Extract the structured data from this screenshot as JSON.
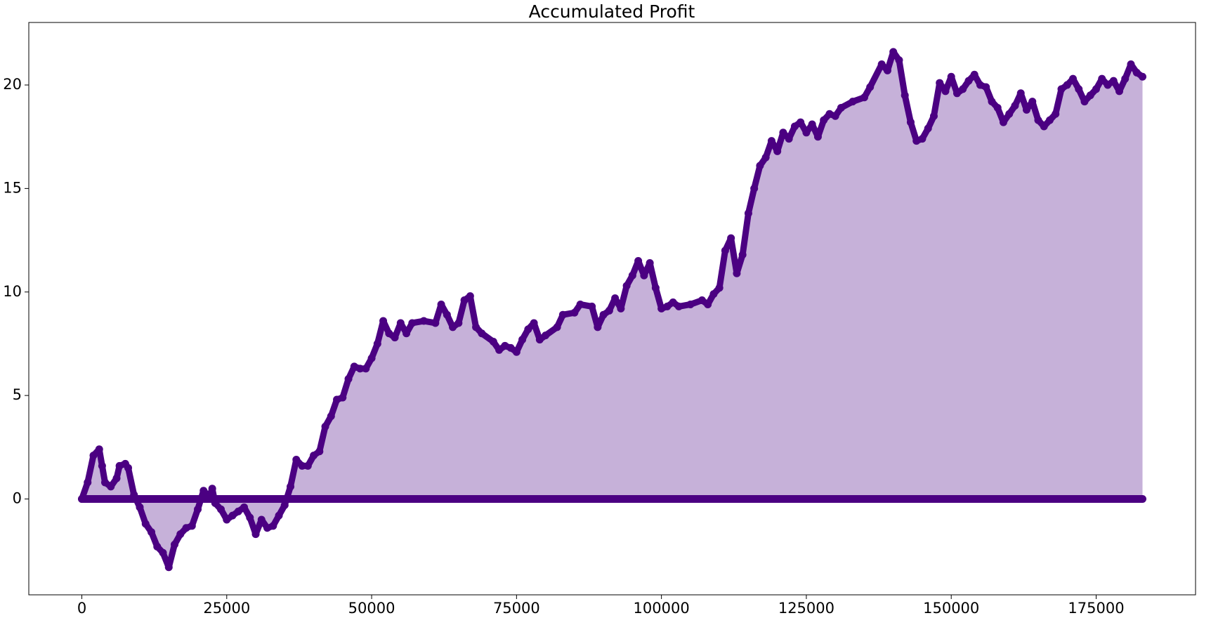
{
  "chart_data": {
    "type": "scatter",
    "title": "Accumulated Profit",
    "xlim": [
      -9150,
      192150
    ],
    "xticks": [
      0,
      25000,
      50000,
      75000,
      100000,
      125000,
      150000,
      175000
    ],
    "ylim": [
      -4.63,
      23.02
    ],
    "yticks": [
      0,
      5,
      10,
      15,
      20
    ],
    "series": [
      {
        "color": "#4b0082",
        "fill": "#c6b1d9",
        "x": [
          0,
          1000,
          2000,
          3000,
          3500,
          4000,
          5000,
          6000,
          6500,
          7500,
          8000,
          9000,
          10000,
          11000,
          12000,
          13000,
          14000,
          15000,
          16000,
          17000,
          18000,
          19000,
          20000,
          21000,
          22000,
          22500,
          23000,
          24000,
          25000,
          26000,
          27000,
          28000,
          29000,
          30000,
          31000,
          32000,
          33000,
          34000,
          35000,
          36000,
          37000,
          38000,
          39000,
          40000,
          41000,
          42000,
          43000,
          44000,
          45000,
          46000,
          47000,
          48000,
          49000,
          50000,
          51000,
          52000,
          53000,
          54000,
          55000,
          56000,
          57000,
          59000,
          61000,
          62000,
          63000,
          64000,
          65000,
          66000,
          67000,
          68000,
          69000,
          71000,
          72000,
          73000,
          74000,
          75000,
          76000,
          77000,
          78000,
          79000,
          80000,
          82000,
          83000,
          85000,
          86000,
          88000,
          89000,
          90000,
          91000,
          92000,
          93000,
          94000,
          95000,
          96000,
          97000,
          98000,
          99000,
          100000,
          101000,
          102000,
          103000,
          105000,
          107000,
          108000,
          109000,
          110000,
          111000,
          112000,
          113000,
          114000,
          115000,
          116000,
          117000,
          118000,
          119000,
          120000,
          121000,
          122000,
          123000,
          124000,
          125000,
          126000,
          127000,
          128000,
          129000,
          130000,
          131000,
          133000,
          135000,
          136000,
          138000,
          139000,
          140000,
          141000,
          142000,
          143000,
          144000,
          145000,
          146000,
          147000,
          148000,
          149000,
          150000,
          151000,
          152000,
          153000,
          154000,
          155000,
          156000,
          157000,
          158000,
          159000,
          160000,
          161000,
          162000,
          163000,
          164000,
          165000,
          166000,
          167000,
          168000,
          169000,
          170000,
          171000,
          172000,
          173000,
          174000,
          175000,
          176000,
          177000,
          178000,
          179000,
          180000,
          181000,
          182000,
          183000
        ],
        "values": [
          0,
          0.8,
          2.1,
          2.4,
          1.6,
          0.8,
          0.6,
          1.0,
          1.6,
          1.7,
          1.5,
          0.2,
          -0.4,
          -1.2,
          -1.6,
          -2.3,
          -2.6,
          -3.3,
          -2.2,
          -1.7,
          -1.4,
          -1.3,
          -0.5,
          0.4,
          0.1,
          0.5,
          -0.2,
          -0.5,
          -1.0,
          -0.8,
          -0.6,
          -0.4,
          -0.9,
          -1.7,
          -1.0,
          -1.4,
          -1.3,
          -0.8,
          -0.3,
          0.6,
          1.9,
          1.6,
          1.6,
          2.1,
          2.3,
          3.5,
          4.0,
          4.8,
          4.9,
          5.8,
          6.4,
          6.3,
          6.3,
          6.8,
          7.5,
          8.6,
          8.0,
          7.8,
          8.5,
          8.0,
          8.5,
          8.6,
          8.5,
          9.4,
          8.9,
          8.3,
          8.5,
          9.6,
          9.8,
          8.3,
          8.0,
          7.6,
          7.2,
          7.4,
          7.3,
          7.1,
          7.7,
          8.2,
          8.5,
          7.7,
          7.9,
          8.3,
          8.9,
          9.0,
          9.4,
          9.3,
          8.3,
          8.9,
          9.1,
          9.7,
          9.2,
          10.3,
          10.8,
          11.5,
          10.8,
          11.4,
          10.2,
          9.2,
          9.3,
          9.5,
          9.3,
          9.4,
          9.6,
          9.4,
          9.9,
          10.2,
          12.0,
          12.6,
          10.9,
          11.8,
          13.8,
          15.0,
          16.1,
          16.5,
          17.3,
          16.8,
          17.7,
          17.4,
          18.0,
          18.2,
          17.7,
          18.1,
          17.5,
          18.3,
          18.6,
          18.5,
          18.9,
          19.2,
          19.4,
          19.9,
          21.0,
          20.7,
          21.6,
          21.2,
          19.5,
          18.2,
          17.3,
          17.4,
          17.9,
          18.5,
          20.1,
          19.7,
          20.4,
          19.6,
          19.8,
          20.2,
          20.5,
          20.0,
          19.9,
          19.2,
          18.9,
          18.2,
          18.6,
          19.0,
          19.6,
          18.8,
          19.2,
          18.3,
          18.0,
          18.3,
          18.6,
          19.8,
          20.0,
          20.3,
          19.8,
          19.2,
          19.5,
          19.8,
          20.3,
          20.0,
          20.2,
          19.7,
          20.3,
          21.0,
          20.6,
          20.4
        ]
      },
      {
        "color": "#4b0082",
        "x": [
          0,
          183000
        ],
        "values": [
          0,
          0
        ]
      }
    ]
  }
}
